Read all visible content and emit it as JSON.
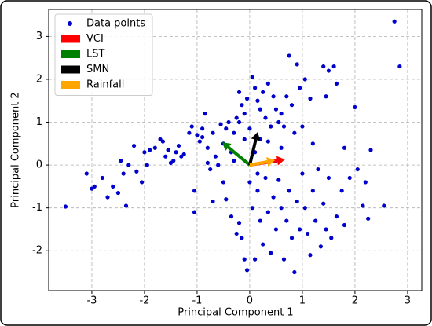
{
  "chart_data": {
    "type": "scatter",
    "xlabel": "Principal Component 1",
    "ylabel": "Principal Component 2",
    "xlim": [
      -3.82,
      3.27
    ],
    "ylim": [
      -2.93,
      3.63
    ],
    "xticks": [
      -3,
      -2,
      -1,
      0,
      1,
      2,
      3
    ],
    "yticks": [
      -2,
      -1,
      0,
      1,
      2,
      3
    ],
    "grid": true,
    "legend": "upper left",
    "series": [
      {
        "name": "Data points",
        "color": "#0000cc",
        "x": [
          -3.5,
          -3.1,
          -3.0,
          -2.95,
          -2.8,
          -2.7,
          -2.6,
          -2.5,
          -2.45,
          -2.4,
          -2.35,
          -2.3,
          -2.2,
          -2.15,
          -2.05,
          -2.0,
          -1.95,
          -1.9,
          -1.8,
          -1.7,
          -1.65,
          -1.6,
          -1.55,
          -1.5,
          -1.45,
          -1.4,
          -1.35,
          -1.3,
          -1.25,
          -1.15,
          -1.1,
          -1.05,
          -1.05,
          -1.0,
          -0.95,
          -0.9,
          -0.9,
          -0.85,
          -0.8,
          -0.8,
          -0.75,
          -0.7,
          -0.65,
          -0.6,
          -0.55,
          -0.5,
          -0.45,
          -0.4,
          -0.35,
          -0.3,
          -0.25,
          -0.2,
          -0.2,
          -0.15,
          -0.1,
          -0.05,
          0.0,
          0.05,
          0.1,
          0.15,
          0.2,
          0.25,
          0.3,
          0.35,
          0.4,
          0.45,
          0.5,
          0.55,
          0.6,
          0.65,
          0.7,
          0.75,
          0.8,
          0.85,
          0.9,
          0.95,
          1.0,
          1.05,
          1.15,
          1.2,
          1.4,
          1.45,
          1.5,
          1.6,
          1.65,
          1.8,
          2.0,
          2.2,
          2.3,
          2.75,
          2.85,
          -0.7,
          -0.45,
          -0.35,
          -0.25,
          -0.2,
          -0.15,
          -0.1,
          -0.05,
          0.0,
          0.05,
          0.1,
          0.15,
          0.2,
          0.25,
          0.3,
          0.35,
          0.4,
          0.45,
          0.5,
          0.55,
          0.6,
          0.65,
          0.7,
          0.75,
          0.8,
          0.85,
          0.9,
          0.95,
          1.0,
          1.05,
          1.1,
          1.15,
          1.2,
          1.25,
          1.3,
          1.35,
          1.4,
          1.45,
          1.5,
          1.55,
          1.65,
          1.75,
          1.8,
          1.9,
          2.05,
          2.15,
          2.25,
          2.55,
          0.1,
          -0.1,
          0.2,
          0.35,
          0.5,
          0.6,
          -0.3,
          -0.5,
          0.15
        ],
        "values": [
          -0.97,
          -0.2,
          -0.55,
          -0.5,
          -0.3,
          -0.75,
          -0.5,
          -0.65,
          0.1,
          -0.2,
          -0.95,
          0.0,
          0.45,
          -0.15,
          -0.4,
          0.3,
          0.0,
          0.35,
          0.4,
          0.6,
          0.55,
          0.2,
          0.35,
          0.05,
          0.1,
          0.3,
          0.45,
          0.2,
          0.25,
          0.75,
          0.9,
          -0.6,
          -1.1,
          0.7,
          0.55,
          0.85,
          0.65,
          1.2,
          0.4,
          0.05,
          -0.1,
          0.75,
          0.2,
          0.0,
          0.95,
          0.5,
          0.85,
          1.0,
          0.3,
          0.75,
          1.1,
          1.0,
          1.7,
          1.4,
          1.2,
          1.55,
          0.85,
          2.05,
          1.8,
          1.5,
          1.3,
          1.7,
          1.1,
          1.9,
          0.9,
          1.6,
          1.3,
          1.0,
          1.2,
          0.9,
          1.6,
          2.55,
          1.4,
          0.75,
          2.35,
          1.8,
          0.9,
          2.0,
          1.55,
          0.5,
          2.3,
          1.6,
          2.2,
          2.3,
          1.9,
          0.4,
          1.35,
          -0.4,
          0.35,
          3.35,
          2.3,
          -0.85,
          -0.8,
          -1.2,
          -1.6,
          -1.35,
          -1.7,
          -2.2,
          -2.45,
          -0.4,
          -1.0,
          -2.2,
          -0.6,
          -1.3,
          -1.85,
          -0.3,
          -1.1,
          -2.05,
          -0.75,
          -1.5,
          -0.35,
          -1.0,
          -2.2,
          -1.3,
          -0.6,
          -1.7,
          -2.5,
          -0.85,
          -1.5,
          -0.2,
          -1.0,
          -1.6,
          -2.1,
          -0.6,
          -1.3,
          -0.1,
          -1.9,
          -0.9,
          -1.5,
          -0.3,
          -1.7,
          -1.2,
          -0.6,
          -1.4,
          -0.3,
          -0.1,
          -0.95,
          -1.25,
          -0.95,
          0.3,
          0.6,
          0.6,
          0.55,
          0.1,
          0.4,
          0.1,
          -0.4,
          -0.2
        ]
      }
    ],
    "vectors": [
      {
        "name": "VCI",
        "color": "#ff0000",
        "x": 0.67,
        "y": 0.13
      },
      {
        "name": "LST",
        "color": "#008000",
        "x": -0.52,
        "y": 0.53
      },
      {
        "name": "SMN",
        "color": "#000000",
        "x": 0.15,
        "y": 0.77
      },
      {
        "name": "Rainfall",
        "color": "#ffa500",
        "x": 0.48,
        "y": 0.11
      }
    ]
  }
}
